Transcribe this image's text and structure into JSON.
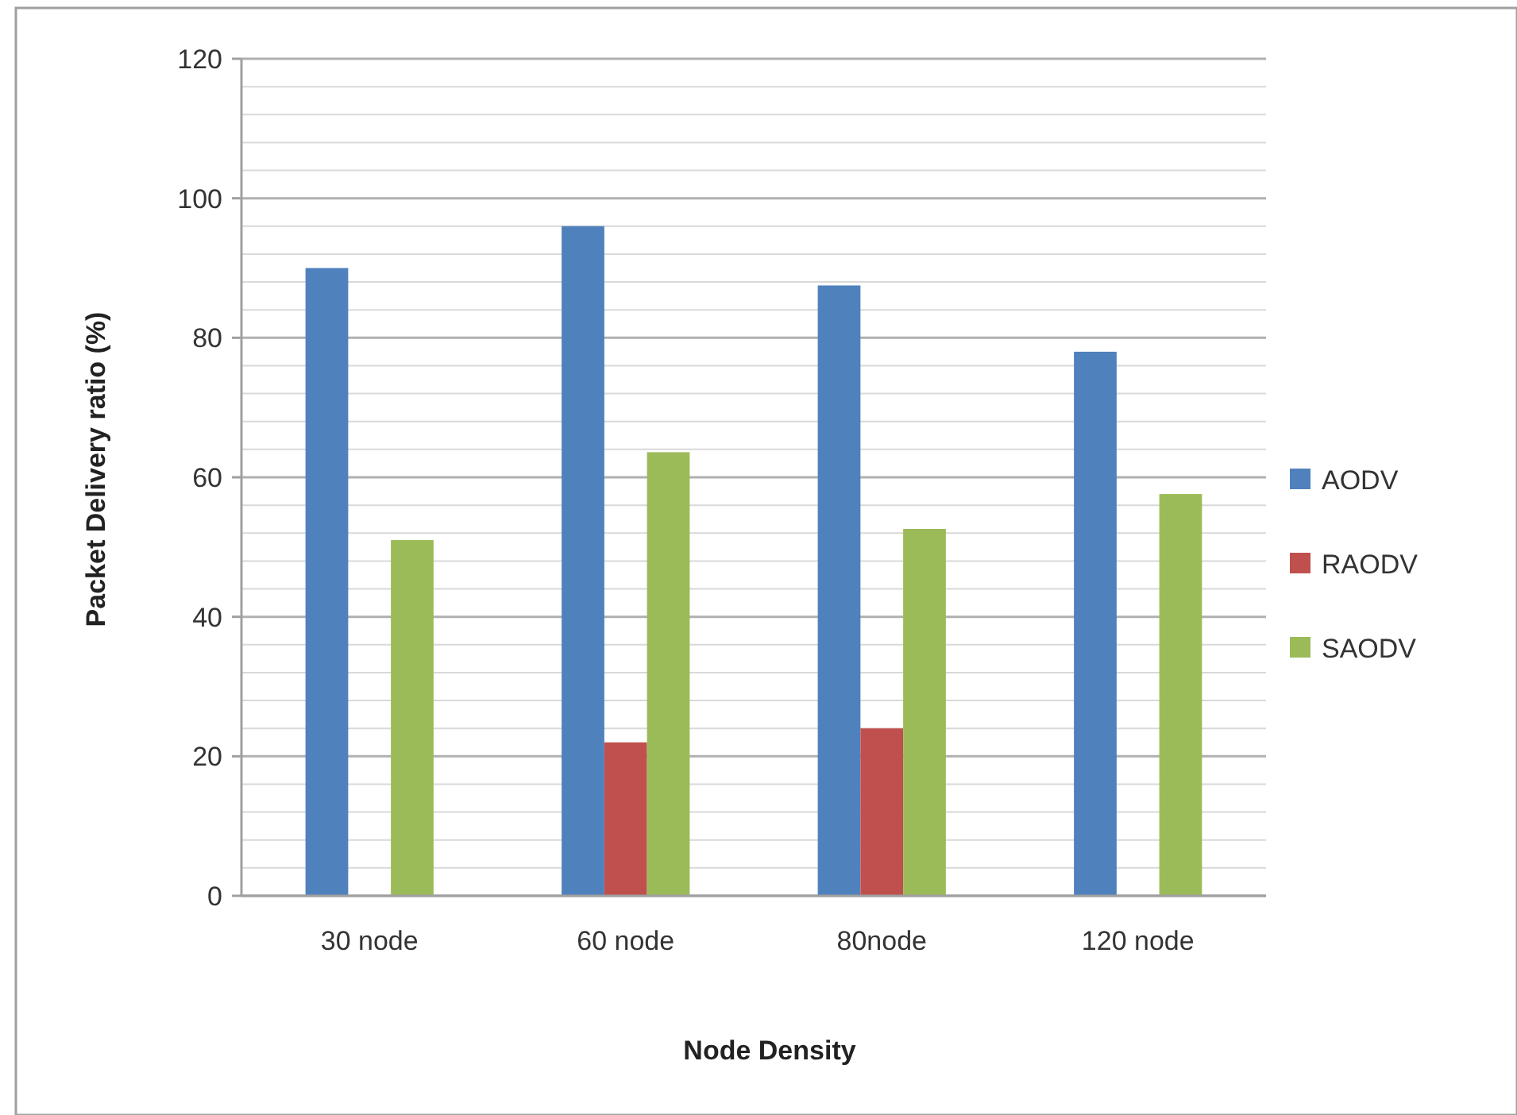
{
  "chart_data": {
    "type": "bar",
    "xlabel": "Node Density",
    "ylabel": "Packet Delivery ratio (%)",
    "categories": [
      "30 node",
      "60 node",
      "80node",
      "120 node"
    ],
    "series": [
      {
        "name": "AODV",
        "color": "#4f81bd",
        "values": [
          90,
          96,
          87.5,
          78
        ]
      },
      {
        "name": "RAODV",
        "color": "#c0504d",
        "values": [
          null,
          22,
          24,
          null
        ]
      },
      {
        "name": "SAODV",
        "color": "#9bbb59",
        "values": [
          51,
          63.6,
          52.6,
          57.6
        ]
      }
    ],
    "ylim": [
      0,
      120
    ],
    "yticks": [
      0,
      {
        "value": 4,
        "label": null
      },
      {
        "value": 8,
        "label": null
      },
      {
        "value": 12,
        "label": null
      },
      {
        "value": 16,
        "label": null
      },
      20,
      {
        "value": 24,
        "label": null
      },
      {
        "value": 28,
        "label": null
      },
      {
        "value": 32,
        "label": null
      },
      {
        "value": 36,
        "label": null
      },
      40,
      {
        "value": 44,
        "label": null
      },
      {
        "value": 48,
        "label": null
      },
      {
        "value": 52,
        "label": null
      },
      {
        "value": 56,
        "label": null
      },
      60,
      {
        "value": 64,
        "label": null
      },
      {
        "value": 68,
        "label": null
      },
      {
        "value": 72,
        "label": null
      },
      {
        "value": 76,
        "label": null
      },
      80,
      {
        "value": 84,
        "label": null
      },
      {
        "value": 88,
        "label": null
      },
      {
        "value": 92,
        "label": null
      },
      {
        "value": 96,
        "label": null
      },
      100,
      {
        "value": 104,
        "label": null
      },
      {
        "value": 108,
        "label": null
      },
      {
        "value": 112,
        "label": null
      },
      {
        "value": 116,
        "label": null
      },
      120
    ],
    "grid": true,
    "legend": "right"
  }
}
